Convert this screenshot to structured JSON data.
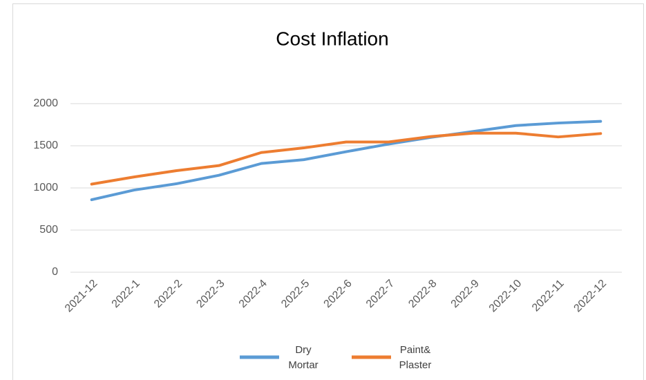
{
  "chart_data": {
    "type": "line",
    "title": "Cost Inflation",
    "categories": [
      "2021-12",
      "2022-1",
      "2022-2",
      "2022-3",
      "2022-4",
      "2022-5",
      "2022-6",
      "2022-7",
      "2022-8",
      "2022-9",
      "2022-10",
      "2022-11",
      "2022-12"
    ],
    "series": [
      {
        "name": "Dry Mortar",
        "color": "#5b9bd5",
        "values": [
          860,
          975,
          1050,
          1150,
          1290,
          1335,
          1430,
          1520,
          1600,
          1670,
          1740,
          1770,
          1790
        ]
      },
      {
        "name": "Paint& Plaster",
        "color": "#ed7d31",
        "values": [
          1045,
          1130,
          1205,
          1265,
          1420,
          1475,
          1545,
          1545,
          1610,
          1650,
          1650,
          1605,
          1645
        ]
      }
    ],
    "ylim": [
      0,
      2000
    ],
    "yticks": [
      0,
      500,
      1000,
      1500,
      2000
    ],
    "grid": true,
    "legend": "bottom"
  }
}
